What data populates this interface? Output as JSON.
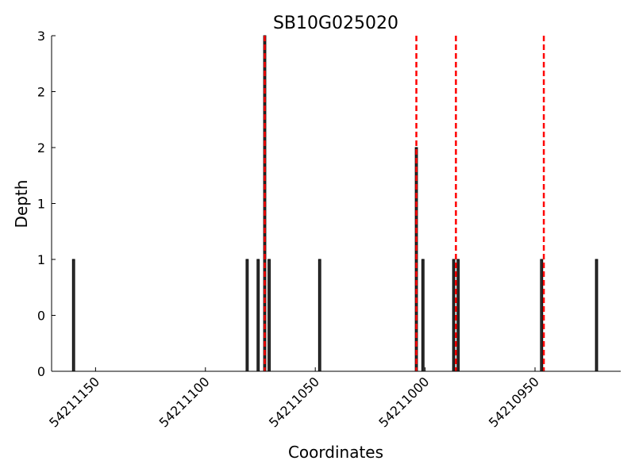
{
  "chart_data": {
    "type": "bar",
    "title": "SB10G025020",
    "x_label": "Coordinates",
    "y_label": "Depth",
    "x": [
      54211160,
      54211081,
      54211076,
      54211073,
      54211071,
      54211048,
      54211004,
      54211001,
      54210987,
      54210985,
      54210947,
      54210922
    ],
    "values": [
      1,
      1,
      1,
      3,
      1,
      1,
      2,
      1,
      1,
      1,
      1,
      1
    ],
    "color": "#333333",
    "vlines": [
      54211073,
      54211004,
      54210986,
      54210946
    ],
    "vline_color": "#ff0000",
    "xlim": [
      54211170,
      54210911
    ],
    "xticks": [
      54211150,
      54211100,
      54211050,
      54211000,
      54210950
    ],
    "ylim": [
      0,
      3
    ],
    "yticks": [
      0,
      {
        "value": 0.5,
        "label": "0"
      },
      1,
      {
        "value": 1.5,
        "label": "1"
      },
      2,
      {
        "value": 2.5,
        "label": "2"
      },
      3
    ]
  }
}
